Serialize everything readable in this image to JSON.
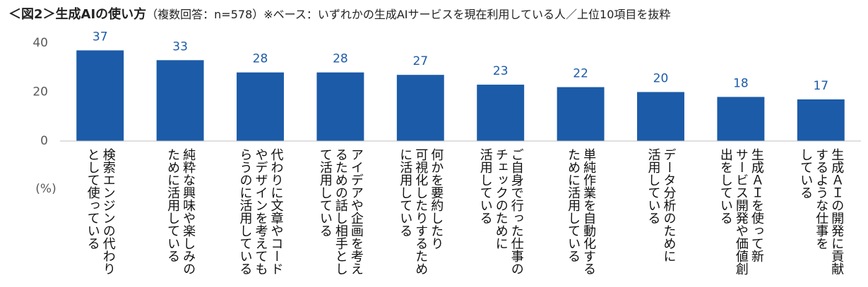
{
  "chart_data": {
    "type": "bar",
    "title": "＜図2＞生成AIの使い方",
    "subtitle": "（複数回答：n=578）※ベース：いずれかの生成AIサービスを現在利用している人／上位10項目を抜粋",
    "y_label": "(%)",
    "categories": [
      "検索エンジンの代わり\nとして使っている",
      "純粋な興味や楽しみの\nために活用している",
      "代わりに文章やコード\nやデザインを考えても\nらうのに活用している",
      "アイデアや企画を考え\nるための話し相手とし\nて活用している",
      "何かを要約したり\n可視化したりするため\nに活用している",
      "ご自身で行った仕事の\nチェックのために\n活用している",
      "単純作業を自動化する\nために活用している",
      "データ分析のために\n活用している",
      "生成ＡＩを使って新\nサービス開発や価値創\n出をしている",
      "生成ＡＩの開発に貢献\nするような仕事を\nしている"
    ],
    "values": [
      37,
      33,
      28,
      28,
      27,
      23,
      22,
      20,
      18,
      17
    ],
    "color": "#1c5ba8",
    "label_color": "#1c5ba8",
    "ylim": [
      0,
      40
    ],
    "yticks": [
      0,
      20,
      40
    ],
    "grid": false
  }
}
